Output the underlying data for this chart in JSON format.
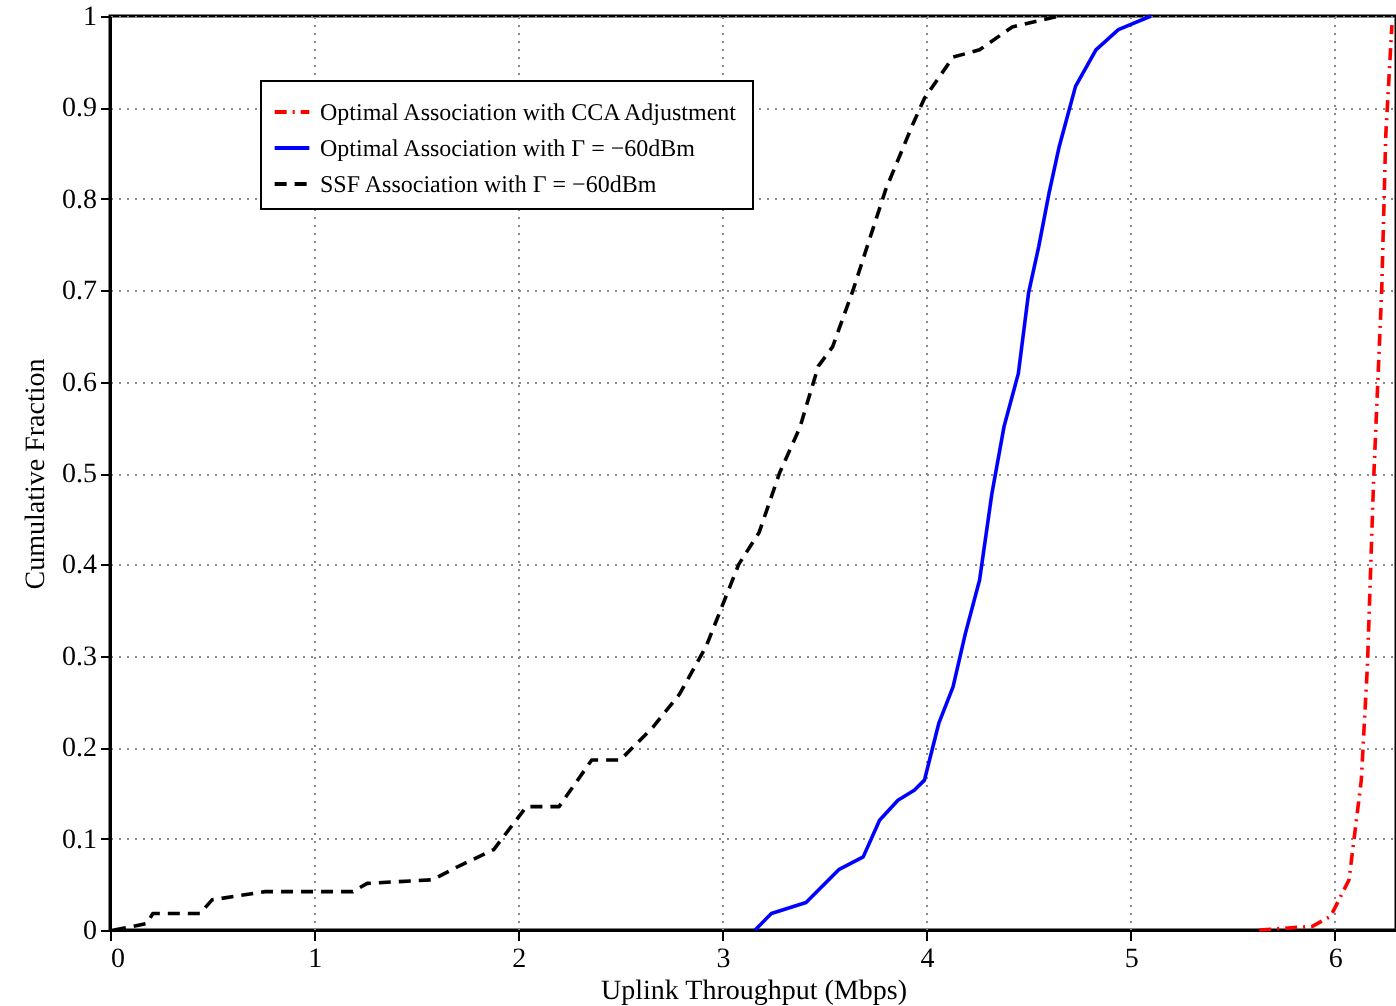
{
  "chart_data": {
    "type": "line",
    "xlabel": "Uplink Throughput (Mbps)",
    "ylabel": "Cumulative Fraction",
    "xlim": [
      0,
      6.3
    ],
    "xticks": [
      0,
      1,
      2,
      3,
      4,
      5,
      6
    ],
    "ylim": [
      0,
      1
    ],
    "yticks": [
      0,
      0.1,
      0.2,
      0.3,
      0.4,
      0.5,
      0.6,
      0.7,
      0.8,
      0.9,
      1
    ],
    "grid": true,
    "legend": "top left",
    "marker": "none",
    "series": [
      {
        "name": "Optimal Association with CCA Adjustment",
        "color": "#ff0000",
        "line_style": "dashdot",
        "x": [
          5.63,
          5.89,
          5.98,
          6.07,
          6.13,
          6.16,
          6.19,
          6.23,
          6.25,
          6.28
        ],
        "values": [
          0,
          0.004,
          0.015,
          0.055,
          0.164,
          0.289,
          0.49,
          0.7,
          0.87,
          0.99
        ]
      },
      {
        "name": "Optimal Association with Γ = −60dBm",
        "color": "#0000ff",
        "line_style": "solid",
        "x": [
          3.16,
          3.24,
          3.41,
          3.57,
          3.69,
          3.77,
          3.86,
          3.94,
          3.99,
          4.06,
          4.13,
          4.19,
          4.26,
          4.32,
          4.38,
          4.45,
          4.5,
          4.55,
          4.6,
          4.65,
          4.73,
          4.83,
          4.94,
          5.1
        ],
        "values": [
          0,
          0.018,
          0.03,
          0.066,
          0.08,
          0.12,
          0.142,
          0.153,
          0.164,
          0.226,
          0.266,
          0.324,
          0.383,
          0.477,
          0.551,
          0.609,
          0.697,
          0.748,
          0.806,
          0.857,
          0.923,
          0.963,
          0.985,
          1
        ]
      },
      {
        "name": "SSF Association with Γ = −60dBm",
        "color": "#000000",
        "line_style": "dashed",
        "x": [
          0.02,
          0.18,
          0.21,
          0.44,
          0.5,
          0.76,
          1.19,
          1.26,
          1.58,
          1.71,
          1.88,
          2.04,
          2.2,
          2.36,
          2.5,
          2.66,
          2.79,
          2.92,
          3.08,
          3.18,
          3.28,
          3.38,
          3.47,
          3.54,
          3.64,
          3.73,
          3.8,
          3.93,
          3.99,
          4.13,
          4.26,
          4.42,
          4.65
        ],
        "values": [
          0,
          0.007,
          0.018,
          0.018,
          0.033,
          0.042,
          0.042,
          0.051,
          0.055,
          0.07,
          0.088,
          0.135,
          0.135,
          0.186,
          0.186,
          0.222,
          0.258,
          0.31,
          0.4,
          0.435,
          0.5,
          0.55,
          0.617,
          0.638,
          0.7,
          0.762,
          0.81,
          0.88,
          0.91,
          0.955,
          0.963,
          0.988,
          1
        ]
      }
    ]
  }
}
